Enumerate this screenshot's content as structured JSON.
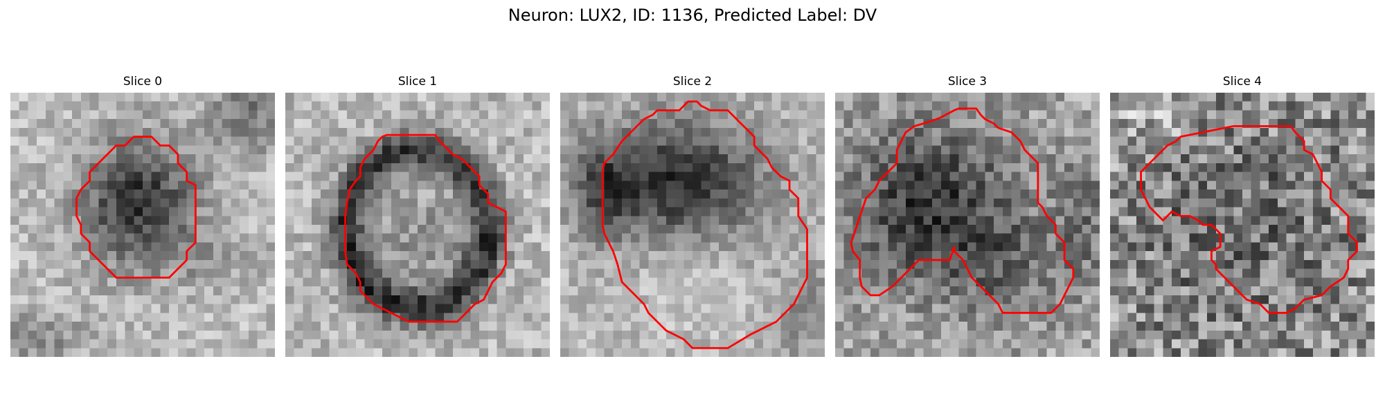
{
  "figure": {
    "title": "Neuron: LUX2, ID: 1136, Predicted Label: DV"
  },
  "contour_color": "#ff0000",
  "panels": [
    {
      "title": "Slice 0",
      "image": "grayscale-microscopy-slice",
      "dark_region": "dark-compact-blob"
    },
    {
      "title": "Slice 1",
      "image": "grayscale-microscopy-slice",
      "dark_region": "dark-ring"
    },
    {
      "title": "Slice 2",
      "image": "grayscale-microscopy-slice",
      "dark_region": "dark-cap-over-light-base"
    },
    {
      "title": "Slice 3",
      "image": "grayscale-microscopy-slice",
      "dark_region": "dark-irregular-region"
    },
    {
      "title": "Slice 4",
      "image": "grayscale-microscopy-slice",
      "dark_region": "mottled-texture"
    }
  ]
}
